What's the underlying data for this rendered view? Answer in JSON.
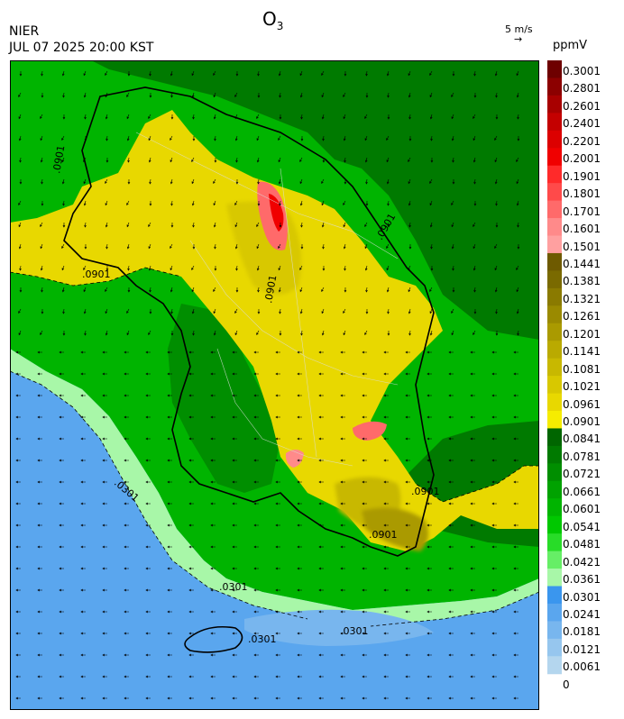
{
  "header": {
    "org": "NIER",
    "timestamp": "JUL 07 2025 20:00 KST",
    "title_main": "O",
    "title_sub": "3",
    "wind_scale_label": "5 m/s",
    "wind_scale_arrow": "→",
    "unit": "ppmV"
  },
  "legend": {
    "labels": [
      "0.3001",
      "0.2801",
      "0.2601",
      "0.2401",
      "0.2201",
      "0.2001",
      "0.1901",
      "0.1801",
      "0.1701",
      "0.1601",
      "0.1501",
      "0.1441",
      "0.1381",
      "0.1321",
      "0.1261",
      "0.1201",
      "0.1141",
      "0.1081",
      "0.1021",
      "0.0961",
      "0.0901",
      "0.0841",
      "0.0781",
      "0.0721",
      "0.0661",
      "0.0601",
      "0.0541",
      "0.0481",
      "0.0421",
      "0.0361",
      "0.0301",
      "0.0241",
      "0.0181",
      "0.0121",
      "0.0061",
      "0"
    ],
    "colors": [
      "#6e0000",
      "#8c0000",
      "#a80000",
      "#c40000",
      "#dc0000",
      "#f00000",
      "#ff2a2a",
      "#ff4a4a",
      "#ff6a6a",
      "#ff8a8a",
      "#ffa0a0",
      "#6e5a00",
      "#7a6a00",
      "#8a7a00",
      "#9a8a00",
      "#aa9a00",
      "#baaa00",
      "#c8b800",
      "#d8c800",
      "#e8d800",
      "#f6ec00",
      "#006600",
      "#007a00",
      "#008e00",
      "#00a200",
      "#00b400",
      "#00c800",
      "#28dc28",
      "#66ee66",
      "#a8f7a8",
      "#3a96ee",
      "#5aa6ee",
      "#78b6ee",
      "#96c6ee",
      "#b4d6ee"
    ]
  },
  "contour_labels": [
    ".0901",
    ".0901",
    ".0901",
    ".0901",
    ".0901",
    ".0901",
    ".0301",
    ".0301",
    ".0301",
    ".0301"
  ]
}
